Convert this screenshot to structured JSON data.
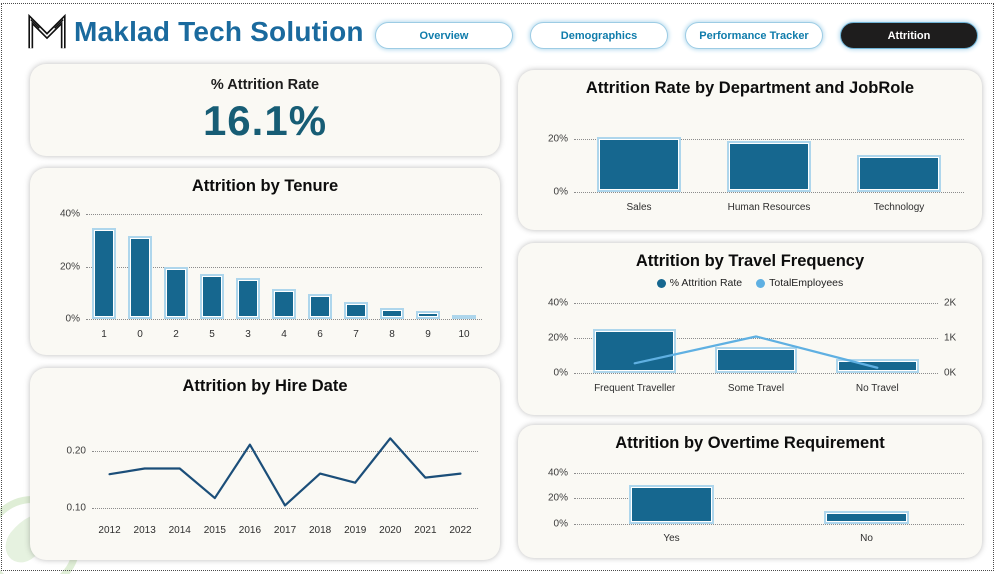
{
  "header": {
    "title": "Maklad Tech Solution",
    "title_color": "#1a6a9e",
    "logo_icon": "m-monogram",
    "tabs": [
      {
        "label": "Overview",
        "active": false
      },
      {
        "label": "Demographics",
        "active": false
      },
      {
        "label": "Performance Tracker",
        "active": false
      },
      {
        "label": "Attrition",
        "active": true
      }
    ]
  },
  "kpi": {
    "label": "% Attrition Rate",
    "value": "16.1%"
  },
  "colors": {
    "bar": "#16678f",
    "bar_border": "#aed6ec",
    "line_dark": "#1b4e79",
    "line_light": "#5fb0e2",
    "kpi_value": "#175d75",
    "brand_title": "#1a6a9e",
    "tab_text": "#0f7cab",
    "active_tab_bg": "#1e1d1d",
    "card_bg": "#faf9f4"
  },
  "chart_data": [
    {
      "type": "bar",
      "title": "Attrition by Tenure",
      "categories": [
        "1",
        "0",
        "2",
        "5",
        "3",
        "4",
        "6",
        "7",
        "8",
        "9",
        "10"
      ],
      "values": [
        34.8,
        31.6,
        19.9,
        17.1,
        15.8,
        11.4,
        9.7,
        6.3,
        4.2,
        3.0,
        0.6
      ],
      "unit": "%",
      "xlabel": "",
      "ylabel": "",
      "ylim": [
        0,
        40
      ],
      "grid": "dotted",
      "ticks": [
        {
          "label": "40%",
          "value": 40
        },
        {
          "label": "20%",
          "value": 20
        },
        {
          "label": "0%",
          "value": 0
        }
      ]
    },
    {
      "type": "line",
      "title": "Attrition by Hire Date",
      "categories": [
        "2012",
        "2013",
        "2014",
        "2015",
        "2016",
        "2017",
        "2018",
        "2019",
        "2020",
        "2021",
        "2022"
      ],
      "values": [
        0.16,
        0.17,
        0.17,
        0.118,
        0.212,
        0.105,
        0.161,
        0.145,
        0.223,
        0.154,
        0.161
      ],
      "color": "#1b4e79",
      "xlabel": "",
      "ylabel": "",
      "ylim": [
        0.09,
        0.25
      ],
      "grid": "dotted",
      "ticks": [
        {
          "label": "0.20",
          "value": 0.2
        },
        {
          "label": "0.10",
          "value": 0.1
        }
      ]
    },
    {
      "type": "bar",
      "title": "Attrition Rate by Department and JobRole",
      "categories": [
        "Sales",
        "Human Resources",
        "Technology"
      ],
      "values": [
        20.6,
        19.0,
        13.8
      ],
      "unit": "%",
      "xlabel": "",
      "ylabel": "",
      "ylim": [
        0,
        30
      ],
      "grid": "dotted",
      "ticks": [
        {
          "label": "20%",
          "value": 20
        },
        {
          "label": "0%",
          "value": 0
        }
      ]
    },
    {
      "type": "combo",
      "title": "Attrition by Travel Frequency",
      "categories": [
        "Frequent Traveller",
        "Some Travel",
        "No Travel"
      ],
      "series": [
        {
          "name": "% Attrition Rate",
          "type": "bar",
          "unit": "%",
          "values": [
            24.9,
            15.0,
            8.0
          ],
          "color": "#16678f"
        },
        {
          "name": "TotalEmployees",
          "type": "line",
          "values": [
            277,
            1043,
            150
          ],
          "color": "#5fb0e2"
        }
      ],
      "legend_position": "top",
      "xlabel": "",
      "ylabel": "",
      "ylim": [
        0,
        40
      ],
      "y2lim": [
        0,
        2000
      ],
      "grid": "dotted",
      "ticks": [
        {
          "label": "40%",
          "value": 40
        },
        {
          "label": "20%",
          "value": 20
        },
        {
          "label": "0%",
          "value": 0
        }
      ],
      "right_ticks": [
        {
          "label": "2K",
          "value": 2000
        },
        {
          "label": "1K",
          "value": 1000
        },
        {
          "label": "0K",
          "value": 0
        }
      ]
    },
    {
      "type": "bar",
      "title": "Attrition by Overtime Requirement",
      "categories": [
        "Yes",
        "No"
      ],
      "values": [
        30.5,
        10.4
      ],
      "unit": "%",
      "xlabel": "",
      "ylabel": "",
      "ylim": [
        0,
        46
      ],
      "grid": "dotted",
      "ticks": [
        {
          "label": "40%",
          "value": 40
        },
        {
          "label": "20%",
          "value": 20
        },
        {
          "label": "0%",
          "value": 0
        }
      ]
    }
  ]
}
